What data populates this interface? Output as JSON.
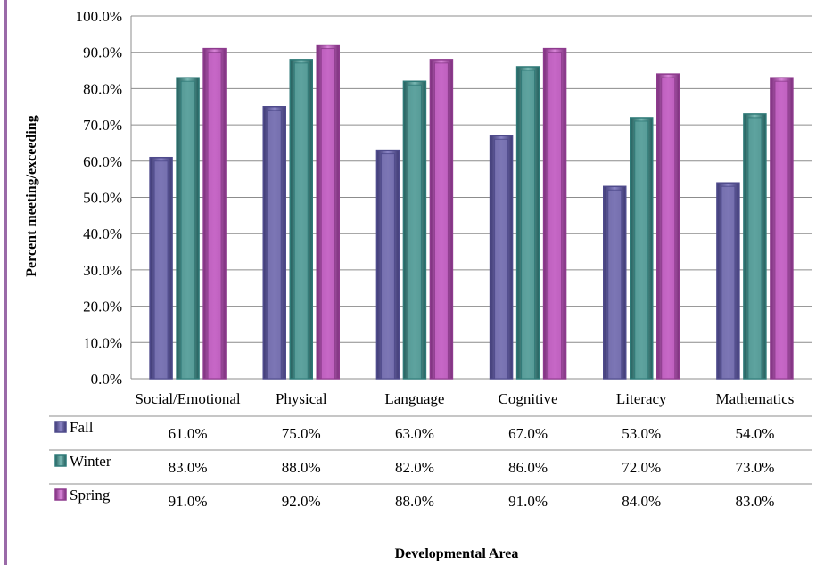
{
  "chart_data": {
    "type": "bar",
    "categories": [
      "Social/Emotional",
      "Physical",
      "Language",
      "Cognitive",
      "Literacy",
      "Mathematics"
    ],
    "series": [
      {
        "name": "Fall",
        "values": [
          61.0,
          75.0,
          63.0,
          67.0,
          53.0,
          54.0
        ],
        "color": "#4f4b8c",
        "face": "#7a74b3",
        "table": [
          "61.0%",
          "75.0%",
          "63.0%",
          "67.0%",
          "53.0%",
          "54.0%"
        ]
      },
      {
        "name": "Winter",
        "values": [
          83.0,
          88.0,
          82.0,
          86.0,
          72.0,
          73.0
        ],
        "color": "#2f7a78",
        "face": "#5aa09c",
        "table": [
          "83.0%",
          "88.0%",
          "82.0%",
          "86.0%",
          "72.0%",
          "73.0%"
        ]
      },
      {
        "name": "Spring",
        "values": [
          91.0,
          92.0,
          88.0,
          91.0,
          84.0,
          83.0
        ],
        "color": "#8e3b8e",
        "face": "#c463c4",
        "table": [
          "91.0%",
          "92.0%",
          "88.0%",
          "91.0%",
          "84.0%",
          "83.0%"
        ]
      }
    ],
    "yticks": [
      "0.0%",
      "10.0%",
      "20.0%",
      "30.0%",
      "40.0%",
      "50.0%",
      "60.0%",
      "70.0%",
      "80.0%",
      "90.0%",
      "100.0%"
    ],
    "ylim": [
      0,
      100
    ],
    "ylabel": "Percent meeting/exceeding",
    "xlabel": "Developmental Area",
    "grid": true,
    "legend": "data-table"
  }
}
